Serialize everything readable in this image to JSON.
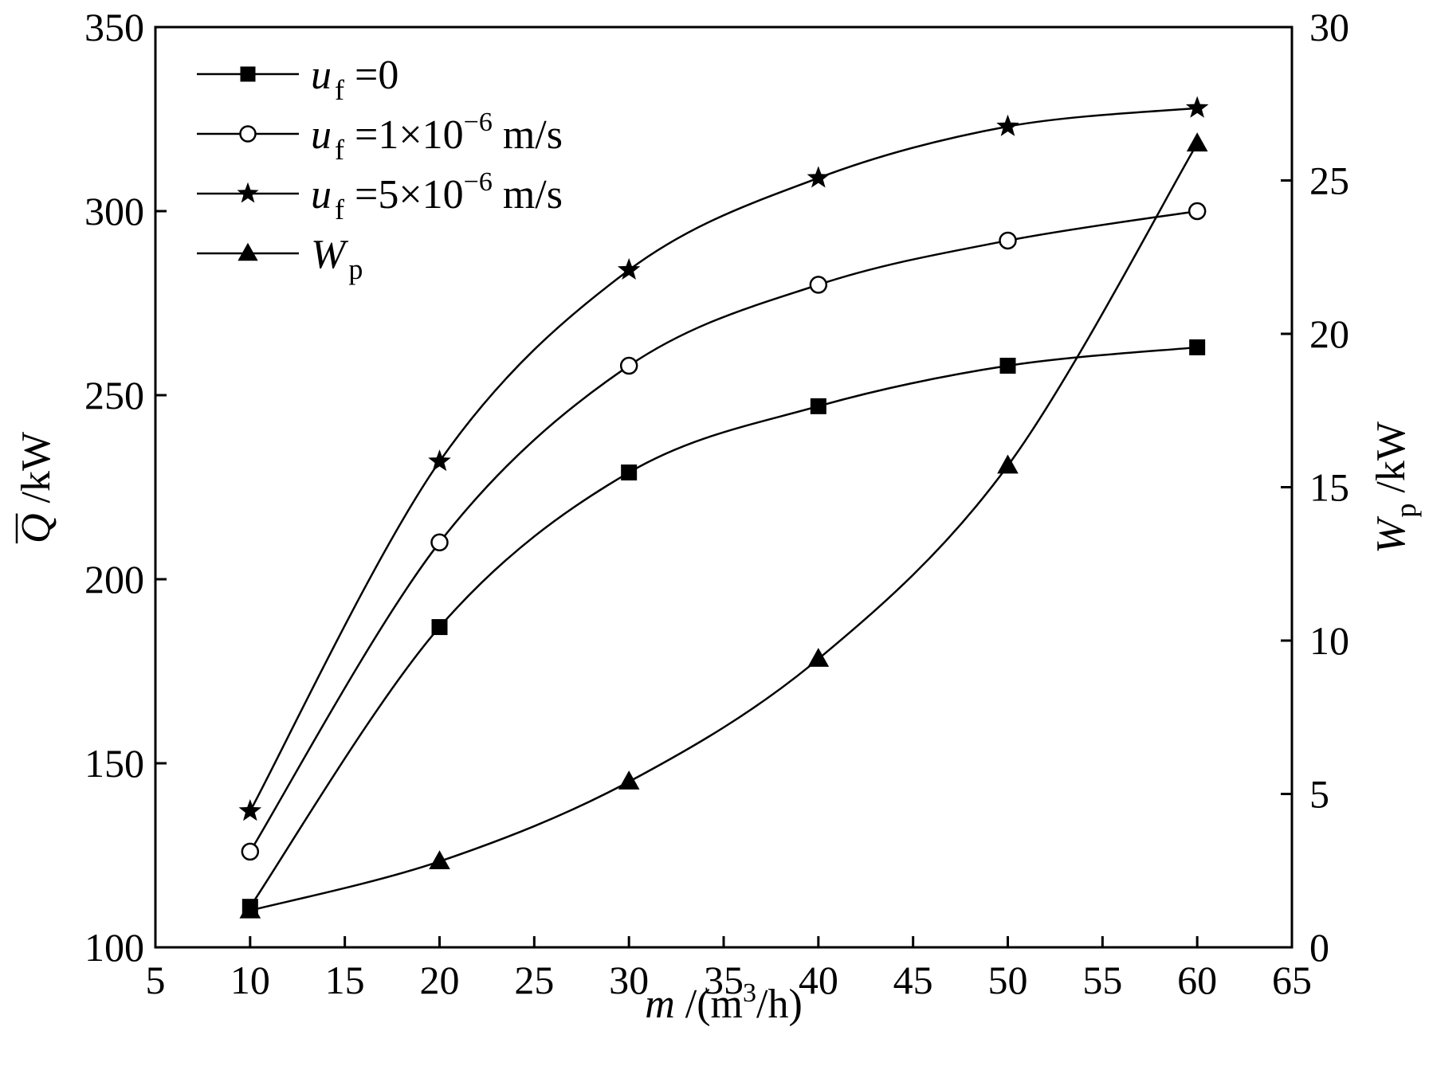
{
  "chart_data": {
    "type": "line",
    "title": "",
    "x": [
      10,
      20,
      30,
      40,
      50,
      60
    ],
    "xlim": [
      5,
      65
    ],
    "xticks": [
      5,
      10,
      15,
      20,
      25,
      30,
      35,
      40,
      45,
      50,
      55,
      60,
      65
    ],
    "xlabel": {
      "var": "m",
      "unit_pre": "/(m",
      "sup": "3",
      "unit_post": "/h)"
    },
    "y_left": {
      "lim": [
        100,
        350
      ],
      "ticks": [
        100,
        150,
        200,
        250,
        300,
        350
      ],
      "label": {
        "var": "Q",
        "unit": "/kW",
        "overline": true
      }
    },
    "y_right": {
      "lim": [
        0,
        30
      ],
      "ticks": [
        0,
        5,
        10,
        15,
        20,
        25,
        30
      ],
      "label": {
        "var": "W",
        "sub": "p",
        "unit": "/kW"
      }
    },
    "series": [
      {
        "name": "u_f = 0",
        "legend": {
          "var": "u",
          "sub": "f",
          "text": " =0"
        },
        "axis": "left",
        "marker": "square",
        "values": [
          111,
          187,
          229,
          247,
          258,
          263
        ]
      },
      {
        "name": "u_f = 1×10^-6 m/s",
        "legend": {
          "var": "u",
          "sub": "f",
          "text": " =1×10",
          "sup": "−6",
          "tail": " m/s"
        },
        "axis": "left",
        "marker": "circle",
        "values": [
          126,
          210,
          258,
          280,
          292,
          300
        ]
      },
      {
        "name": "u_f = 5×10^-6 m/s",
        "legend": {
          "var": "u",
          "sub": "f",
          "text": " =5×10",
          "sup": "−6",
          "tail": " m/s"
        },
        "axis": "left",
        "marker": "star",
        "values": [
          137,
          232,
          284,
          309,
          323,
          328
        ]
      },
      {
        "name": "W_p",
        "legend": {
          "var": "W",
          "sub": "p"
        },
        "axis": "right",
        "marker": "triangle",
        "values": [
          1.2,
          2.8,
          5.4,
          9.4,
          15.7,
          26.2
        ]
      }
    ],
    "grid": false,
    "legend_position": "top-left"
  }
}
